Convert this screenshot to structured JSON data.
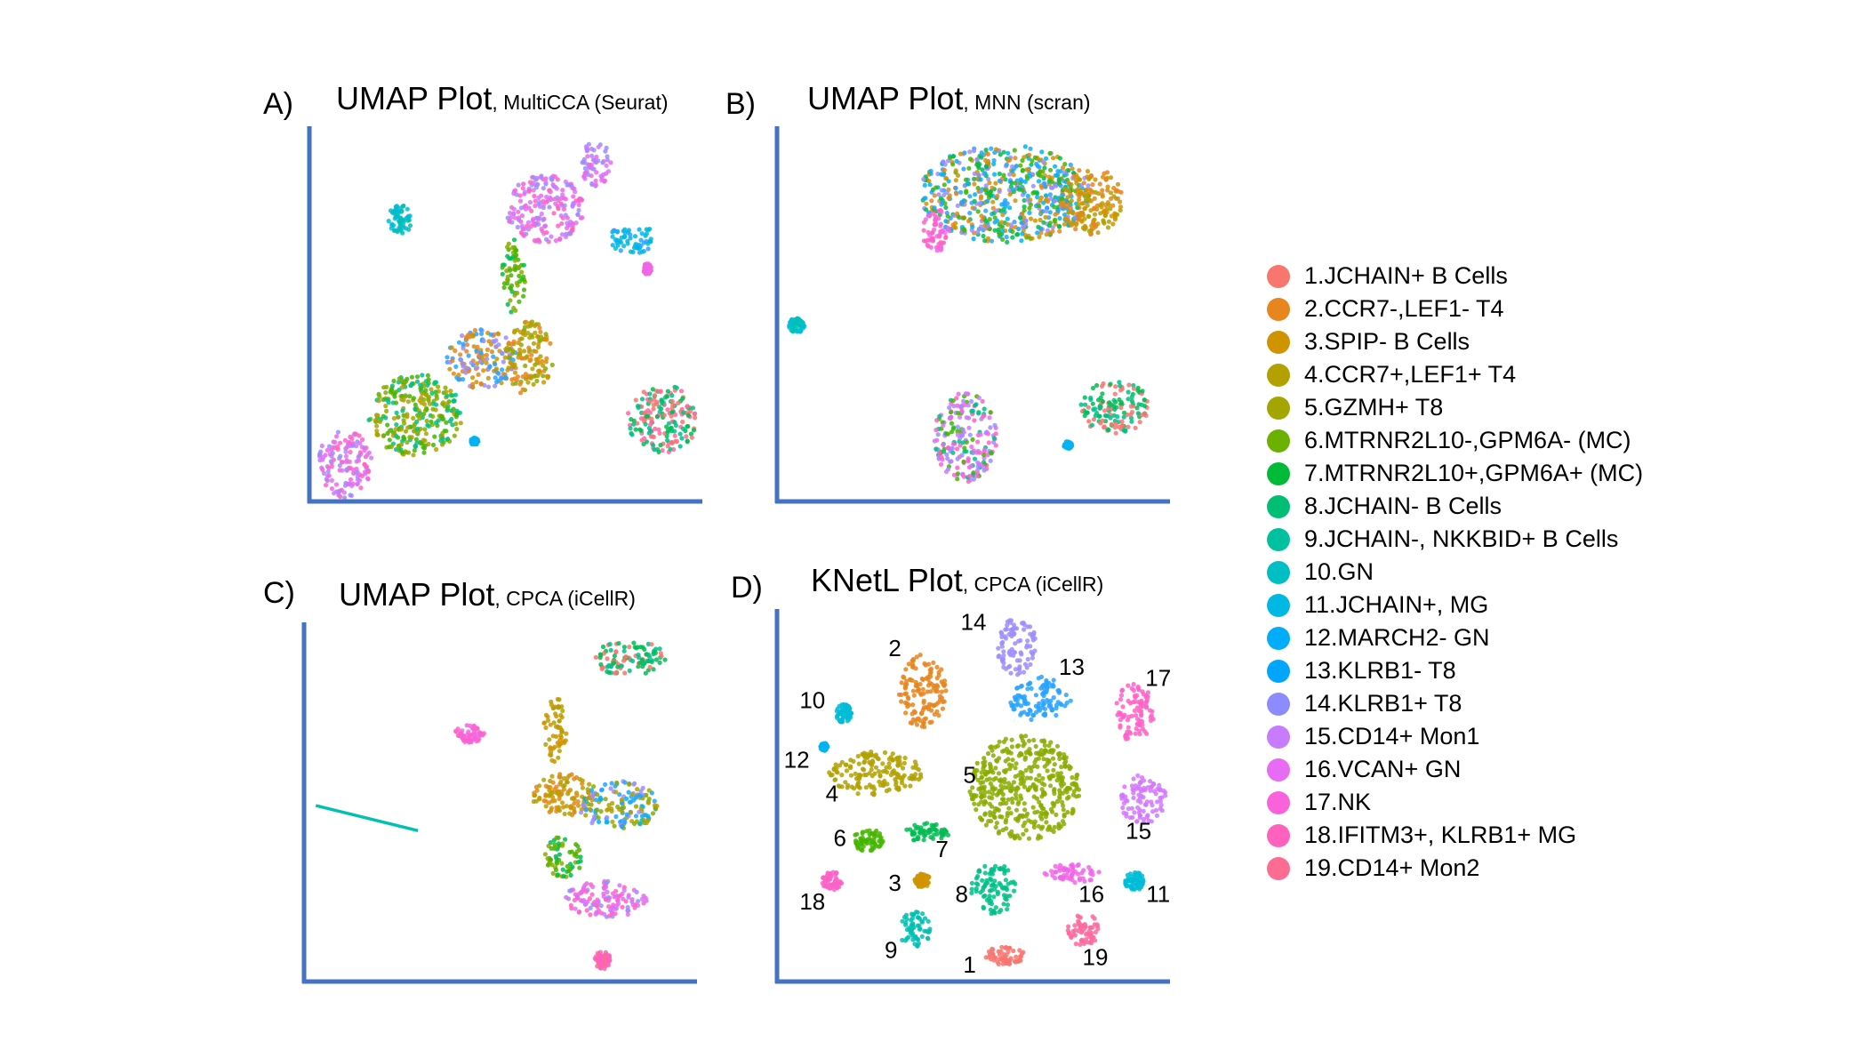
{
  "palette": [
    "#F8766D",
    "#E7851E",
    "#D09400",
    "#B2A100",
    "#89AC00",
    "#45B500",
    "#00BC51",
    "#00C087",
    "#00C0B2",
    "#00BCD6",
    "#00B3F2",
    "#29A3FF",
    "#9C8DFF",
    "#D277FF",
    "#F166E8",
    "#FF61C7",
    "#FF689E"
  ],
  "chart_data": [
    {
      "type": "scatter",
      "panel_letter": "A)",
      "title": "UMAP Plot",
      "subtitle": ", MultiCCA (Seurat)",
      "xlabel": "",
      "ylabel": "",
      "clusters": [
        {
          "cx": 0.27,
          "cy": 0.77,
          "rx": 0.12,
          "ry": 0.11,
          "colors": [
            "#89AC00",
            "#45B500",
            "#B2A100",
            "#00C087"
          ]
        },
        {
          "cx": 0.09,
          "cy": 0.9,
          "rx": 0.07,
          "ry": 0.09,
          "colors": [
            "#FF61C7",
            "#F166E8",
            "#D277FF",
            "#9C8DFF"
          ]
        },
        {
          "cx": 0.44,
          "cy": 0.62,
          "rx": 0.09,
          "ry": 0.08,
          "colors": [
            "#9C8DFF",
            "#29A3FF",
            "#E7851E",
            "#D09400"
          ]
        },
        {
          "cx": 0.56,
          "cy": 0.62,
          "rx": 0.06,
          "ry": 0.1,
          "colors": [
            "#E7851E",
            "#D09400",
            "#B2A100",
            "#89AC00"
          ]
        },
        {
          "cx": 0.6,
          "cy": 0.22,
          "rx": 0.1,
          "ry": 0.09,
          "colors": [
            "#F166E8",
            "#D277FF",
            "#FF61C7",
            "#9C8DFF"
          ]
        },
        {
          "cx": 0.73,
          "cy": 0.1,
          "rx": 0.04,
          "ry": 0.06,
          "colors": [
            "#D277FF",
            "#9C8DFF",
            "#F166E8"
          ]
        },
        {
          "cx": 0.52,
          "cy": 0.4,
          "rx": 0.03,
          "ry": 0.1,
          "colors": [
            "#45B500",
            "#00BC51",
            "#89AC00"
          ]
        },
        {
          "cx": 0.82,
          "cy": 0.3,
          "rx": 0.06,
          "ry": 0.04,
          "colors": [
            "#00B3F2",
            "#29A3FF",
            "#00BCD6"
          ]
        },
        {
          "cx": 0.9,
          "cy": 0.78,
          "rx": 0.09,
          "ry": 0.09,
          "colors": [
            "#00C087",
            "#00BC51",
            "#F8766D",
            "#FF689E"
          ]
        },
        {
          "cx": 0.23,
          "cy": 0.25,
          "rx": 0.03,
          "ry": 0.04,
          "colors": [
            "#00C0B2",
            "#00BCD6"
          ]
        },
        {
          "cx": 0.42,
          "cy": 0.84,
          "rx": 0.01,
          "ry": 0.01,
          "colors": [
            "#00B3F2"
          ]
        },
        {
          "cx": 0.86,
          "cy": 0.38,
          "rx": 0.01,
          "ry": 0.015,
          "colors": [
            "#F166E8"
          ]
        }
      ]
    },
    {
      "type": "scatter",
      "panel_letter": "B)",
      "title": "UMAP Plot",
      "subtitle": ", MNN (scran)",
      "xlabel": "",
      "ylabel": "",
      "clusters": [
        {
          "cx": 0.58,
          "cy": 0.18,
          "rx": 0.22,
          "ry": 0.13,
          "colors": [
            "#00B3F2",
            "#45B500",
            "#29A3FF",
            "#E7851E",
            "#D09400",
            "#9C8DFF",
            "#00BC51"
          ]
        },
        {
          "cx": 0.8,
          "cy": 0.2,
          "rx": 0.08,
          "ry": 0.09,
          "colors": [
            "#B2A100",
            "#D09400",
            "#E7851E"
          ]
        },
        {
          "cx": 0.41,
          "cy": 0.28,
          "rx": 0.04,
          "ry": 0.06,
          "colors": [
            "#FF61C7",
            "#F166E8"
          ]
        },
        {
          "cx": 0.48,
          "cy": 0.83,
          "rx": 0.08,
          "ry": 0.12,
          "colors": [
            "#F166E8",
            "#D277FF",
            "#9C8DFF",
            "#FF61C7",
            "#00C087",
            "#45B500"
          ]
        },
        {
          "cx": 0.86,
          "cy": 0.75,
          "rx": 0.09,
          "ry": 0.07,
          "colors": [
            "#00C087",
            "#00BC51",
            "#F8766D"
          ]
        },
        {
          "cx": 0.05,
          "cy": 0.53,
          "rx": 0.02,
          "ry": 0.02,
          "colors": [
            "#00BCD6",
            "#00C0B2"
          ]
        },
        {
          "cx": 0.74,
          "cy": 0.85,
          "rx": 0.01,
          "ry": 0.01,
          "colors": [
            "#00B3F2"
          ]
        }
      ]
    },
    {
      "type": "scatter",
      "panel_letter": "C)",
      "title": "UMAP Plot",
      "subtitle": ", CPCA (iCellR)",
      "xlabel": "",
      "ylabel": "",
      "clusters": [
        {
          "cx": 0.83,
          "cy": 0.1,
          "rx": 0.09,
          "ry": 0.05,
          "colors": [
            "#00BC51",
            "#00C087",
            "#F8766D"
          ]
        },
        {
          "cx": 0.42,
          "cy": 0.31,
          "rx": 0.04,
          "ry": 0.025,
          "colors": [
            "#FF61C7",
            "#F166E8"
          ]
        },
        {
          "cx": 0.64,
          "cy": 0.3,
          "rx": 0.03,
          "ry": 0.09,
          "colors": [
            "#B2A100",
            "#D09400"
          ]
        },
        {
          "cx": 0.66,
          "cy": 0.48,
          "rx": 0.08,
          "ry": 0.06,
          "colors": [
            "#E7851E",
            "#D09400",
            "#B2A100"
          ]
        },
        {
          "cx": 0.8,
          "cy": 0.51,
          "rx": 0.1,
          "ry": 0.07,
          "colors": [
            "#00B3F2",
            "#29A3FF",
            "#9C8DFF",
            "#89AC00",
            "#B2A100"
          ]
        },
        {
          "cx": 0.66,
          "cy": 0.65,
          "rx": 0.05,
          "ry": 0.06,
          "colors": [
            "#45B500",
            "#00BC51",
            "#89AC00"
          ]
        },
        {
          "cx": 0.77,
          "cy": 0.77,
          "rx": 0.11,
          "ry": 0.05,
          "colors": [
            "#D277FF",
            "#F166E8",
            "#9C8DFF",
            "#FF61C7"
          ]
        },
        {
          "cx": 0.76,
          "cy": 0.94,
          "rx": 0.02,
          "ry": 0.025,
          "colors": [
            "#FF61C7",
            "#FF689E"
          ]
        }
      ],
      "line": {
        "x": [
          0.03,
          0.29
        ],
        "y": [
          0.51,
          0.58
        ],
        "color": "#00C0B2"
      }
    },
    {
      "type": "scatter",
      "panel_letter": "D)",
      "title": "KNetL Plot",
      "subtitle": ", CPCA (iCellR)",
      "xlabel": "",
      "ylabel": "",
      "clusters": [
        {
          "id": "1",
          "cx": 0.58,
          "cy": 0.93,
          "rx": 0.05,
          "ry": 0.025,
          "color": "#F8766D",
          "label_x": 0.49,
          "label_y": 0.96
        },
        {
          "id": "2",
          "cx": 0.37,
          "cy": 0.22,
          "rx": 0.06,
          "ry": 0.1,
          "color": "#E7851E",
          "label_x": 0.3,
          "label_y": 0.11
        },
        {
          "id": "3",
          "cx": 0.37,
          "cy": 0.73,
          "rx": 0.02,
          "ry": 0.02,
          "color": "#D09400",
          "label_x": 0.3,
          "label_y": 0.74
        },
        {
          "id": "4",
          "cx": 0.25,
          "cy": 0.44,
          "rx": 0.12,
          "ry": 0.06,
          "color": "#B2A100",
          "label_x": 0.14,
          "label_y": 0.5
        },
        {
          "id": "5",
          "cx": 0.63,
          "cy": 0.48,
          "rx": 0.14,
          "ry": 0.14,
          "color": "#89AC00",
          "label_x": 0.49,
          "label_y": 0.45
        },
        {
          "id": "6",
          "cx": 0.23,
          "cy": 0.62,
          "rx": 0.04,
          "ry": 0.03,
          "color": "#45B500",
          "label_x": 0.16,
          "label_y": 0.62
        },
        {
          "id": "7",
          "cx": 0.38,
          "cy": 0.6,
          "rx": 0.06,
          "ry": 0.025,
          "color": "#00BC51",
          "label_x": 0.42,
          "label_y": 0.65
        },
        {
          "id": "8",
          "cx": 0.55,
          "cy": 0.75,
          "rx": 0.06,
          "ry": 0.07,
          "color": "#00C087",
          "label_x": 0.47,
          "label_y": 0.77
        },
        {
          "id": "9",
          "cx": 0.35,
          "cy": 0.86,
          "rx": 0.04,
          "ry": 0.05,
          "color": "#00C0B2",
          "label_x": 0.29,
          "label_y": 0.92
        },
        {
          "id": "10",
          "cx": 0.17,
          "cy": 0.28,
          "rx": 0.02,
          "ry": 0.025,
          "color": "#00BCD6",
          "label_x": 0.09,
          "label_y": 0.25
        },
        {
          "id": "11",
          "cx": 0.91,
          "cy": 0.73,
          "rx": 0.025,
          "ry": 0.025,
          "color": "#00BCD6",
          "label_x": 0.97,
          "label_y": 0.77
        },
        {
          "id": "12",
          "cx": 0.12,
          "cy": 0.37,
          "rx": 0.01,
          "ry": 0.01,
          "color": "#00B3F2",
          "label_x": 0.05,
          "label_y": 0.41
        },
        {
          "id": "13",
          "cx": 0.67,
          "cy": 0.24,
          "rx": 0.08,
          "ry": 0.06,
          "color": "#29A3FF",
          "label_x": 0.75,
          "label_y": 0.16
        },
        {
          "id": "14",
          "cx": 0.61,
          "cy": 0.1,
          "rx": 0.05,
          "ry": 0.08,
          "color": "#9C8DFF",
          "label_x": 0.5,
          "label_y": 0.04
        },
        {
          "id": "15",
          "cx": 0.93,
          "cy": 0.51,
          "rx": 0.06,
          "ry": 0.07,
          "color": "#D277FF",
          "label_x": 0.92,
          "label_y": 0.6
        },
        {
          "id": "16",
          "cx": 0.75,
          "cy": 0.71,
          "rx": 0.07,
          "ry": 0.025,
          "color": "#F166E8",
          "label_x": 0.8,
          "label_y": 0.77
        },
        {
          "id": "17",
          "cx": 0.91,
          "cy": 0.28,
          "rx": 0.05,
          "ry": 0.08,
          "color": "#FF61C7",
          "label_x": 0.97,
          "label_y": 0.19
        },
        {
          "id": "18",
          "cx": 0.14,
          "cy": 0.73,
          "rx": 0.025,
          "ry": 0.025,
          "color": "#FF61C7",
          "label_x": 0.09,
          "label_y": 0.79
        },
        {
          "id": "19",
          "cx": 0.78,
          "cy": 0.86,
          "rx": 0.04,
          "ry": 0.045,
          "color": "#FF689E",
          "label_x": 0.81,
          "label_y": 0.94
        }
      ]
    }
  ],
  "legend": {
    "items": [
      {
        "label": "1.JCHAIN+ B Cells",
        "color": "#F8766D"
      },
      {
        "label": "2.CCR7-,LEF1- T4",
        "color": "#E7851E"
      },
      {
        "label": "3.SPIP- B Cells",
        "color": "#D09400"
      },
      {
        "label": "4.CCR7+,LEF1+ T4",
        "color": "#B2A100"
      },
      {
        "label": "5.GZMH+ T8",
        "color": "#A3A500"
      },
      {
        "label": "6.MTRNR2L10-,GPM6A- (MC)",
        "color": "#6BB100"
      },
      {
        "label": "7.MTRNR2L10+,GPM6A+ (MC)",
        "color": "#00BA38"
      },
      {
        "label": "8.JCHAIN- B Cells",
        "color": "#00BF74"
      },
      {
        "label": "9.JCHAIN-, NKKBID+ B Cells",
        "color": "#00C19F"
      },
      {
        "label": "10.GN",
        "color": "#00BFC4"
      },
      {
        "label": "11.JCHAIN+, MG",
        "color": "#00B9E3"
      },
      {
        "label": "12.MARCH2- GN",
        "color": "#00ADFA"
      },
      {
        "label": "13.KLRB1- T8",
        "color": "#00A5FF"
      },
      {
        "label": "14.KLRB1+ T8",
        "color": "#8C8CFF"
      },
      {
        "label": "15.CD14+ Mon1",
        "color": "#C77CFF"
      },
      {
        "label": "16.VCAN+ GN",
        "color": "#E76BF3"
      },
      {
        "label": "17.NK",
        "color": "#FA62DB"
      },
      {
        "label": "18.IFITM3+, KLRB1+ MG",
        "color": "#FF62BC"
      },
      {
        "label": "19.CD14+ Mon2",
        "color": "#FF6C91"
      }
    ]
  },
  "axis_color": "#4472C4"
}
